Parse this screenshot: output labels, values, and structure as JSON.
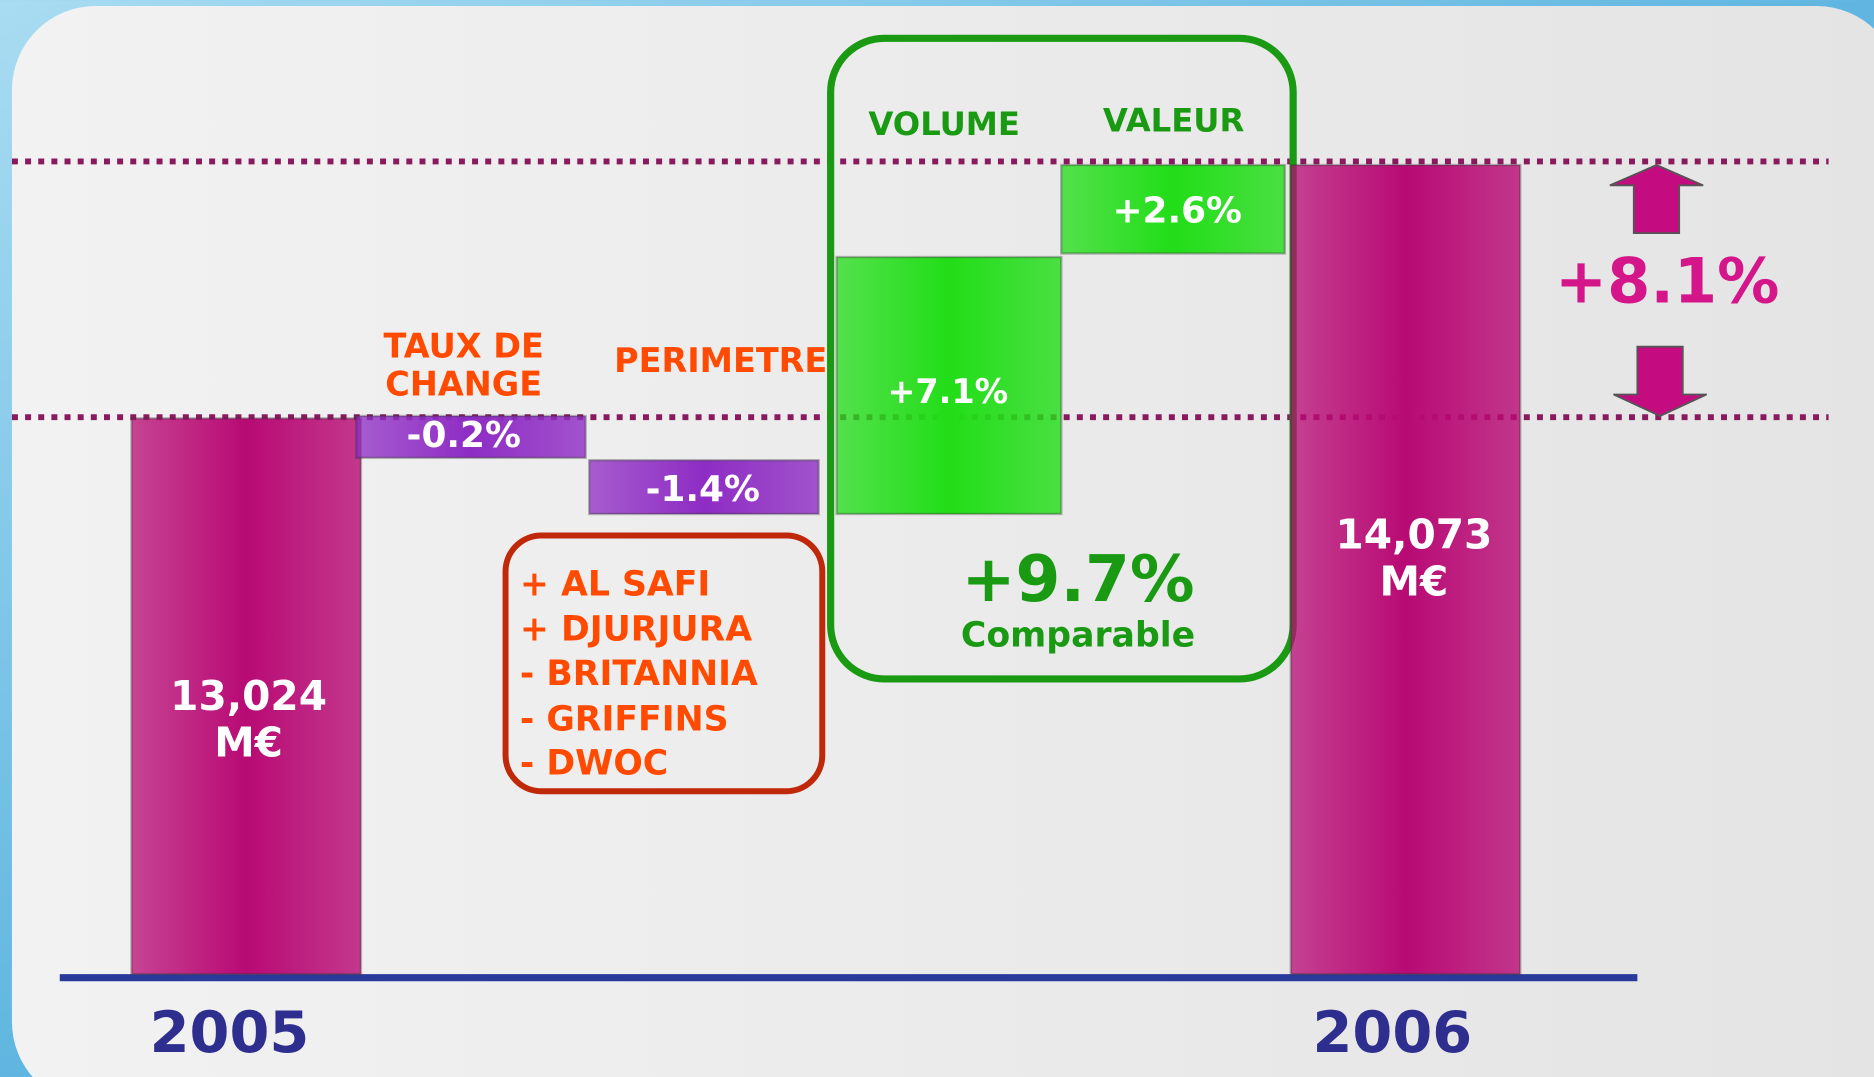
{
  "chart_data": {
    "type": "waterfall",
    "categories": [
      "2005",
      "TAUX DE CHANGE",
      "PERIMETRE",
      "VOLUME",
      "VALEUR",
      "2006"
    ],
    "values": [
      13024,
      -0.2,
      -1.4,
      7.1,
      2.6,
      14073
    ],
    "value_labels": [
      "13,024 M€",
      "-0.2%",
      "-1.4%",
      "+7.1%",
      "+2.6%",
      "14,073 M€"
    ],
    "colors": [
      "#b80a74",
      "#8e2cc4",
      "#8e2cc4",
      "#22dd18",
      "#22dd18",
      "#b80a74"
    ],
    "comparable": {
      "value": 9.7,
      "label": "+9.7%",
      "text": "Comparable"
    },
    "total_change": {
      "value": 8.1,
      "label": "+8.1%"
    },
    "perimeter_notes": [
      "+ AL SAFI",
      "+ DJURJURA",
      "- BRITANNIA",
      "- GRIFFINS",
      "- DWOC"
    ]
  }
}
